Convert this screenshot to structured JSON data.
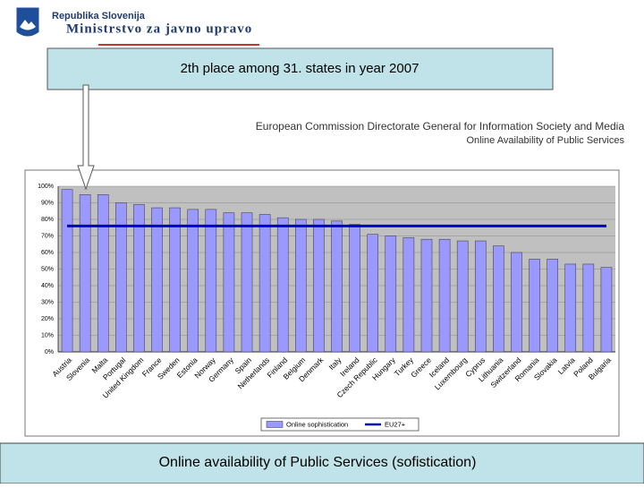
{
  "header": {
    "country": "Republika Slovenija",
    "ministry": "Ministrstvo za javno upravo"
  },
  "callout": "2th place among 31. states in year 2007",
  "caption": "Online availability of Public Services (sofistication)",
  "chart_data": {
    "type": "bar",
    "title": "European Commission Directorate General for Information Society and Media",
    "subtitle": "Online Availability of Public Services",
    "categories": [
      "Austria",
      "Slovenia",
      "Malta",
      "Portugal",
      "United Kingdom",
      "France",
      "Sweden",
      "Estonia",
      "Norway",
      "Germany",
      "Spain",
      "Netherlands",
      "Finland",
      "Belgium",
      "Denmark",
      "Italy",
      "Ireland",
      "Czech Republic",
      "Hungary",
      "Turkey",
      "Greece",
      "Iceland",
      "Luxembourg",
      "Cyprus",
      "Lithuania",
      "Switzerland",
      "Romania",
      "Slovakia",
      "Latvia",
      "Poland",
      "Bulgaria"
    ],
    "series": [
      {
        "name": "Online sophistication",
        "color": "#9999ff",
        "values": [
          98,
          95,
          95,
          90,
          89,
          87,
          87,
          86,
          86,
          84,
          84,
          83,
          81,
          80,
          80,
          79,
          77,
          71,
          70,
          69,
          68,
          68,
          67,
          67,
          64,
          60,
          56,
          56,
          53,
          53,
          51
        ]
      }
    ],
    "reference_lines": [
      {
        "name": "EU27+",
        "value": 76,
        "color": "#0000cc"
      }
    ],
    "ylim": [
      0,
      100
    ],
    "yticks": [
      {
        "value": 0,
        "label": "0%"
      },
      {
        "value": 10,
        "label": "10%"
      },
      {
        "value": 20,
        "label": "20%"
      },
      {
        "value": 30,
        "label": "30%"
      },
      {
        "value": 40,
        "label": "40%"
      },
      {
        "value": 50,
        "label": "50%"
      },
      {
        "value": 60,
        "label": "60%"
      },
      {
        "value": 70,
        "label": "70%"
      },
      {
        "value": 80,
        "label": "80%"
      },
      {
        "value": 90,
        "label": "90%"
      },
      {
        "value": 100,
        "label": "100%"
      }
    ],
    "grid": true,
    "legend": "bottom"
  }
}
